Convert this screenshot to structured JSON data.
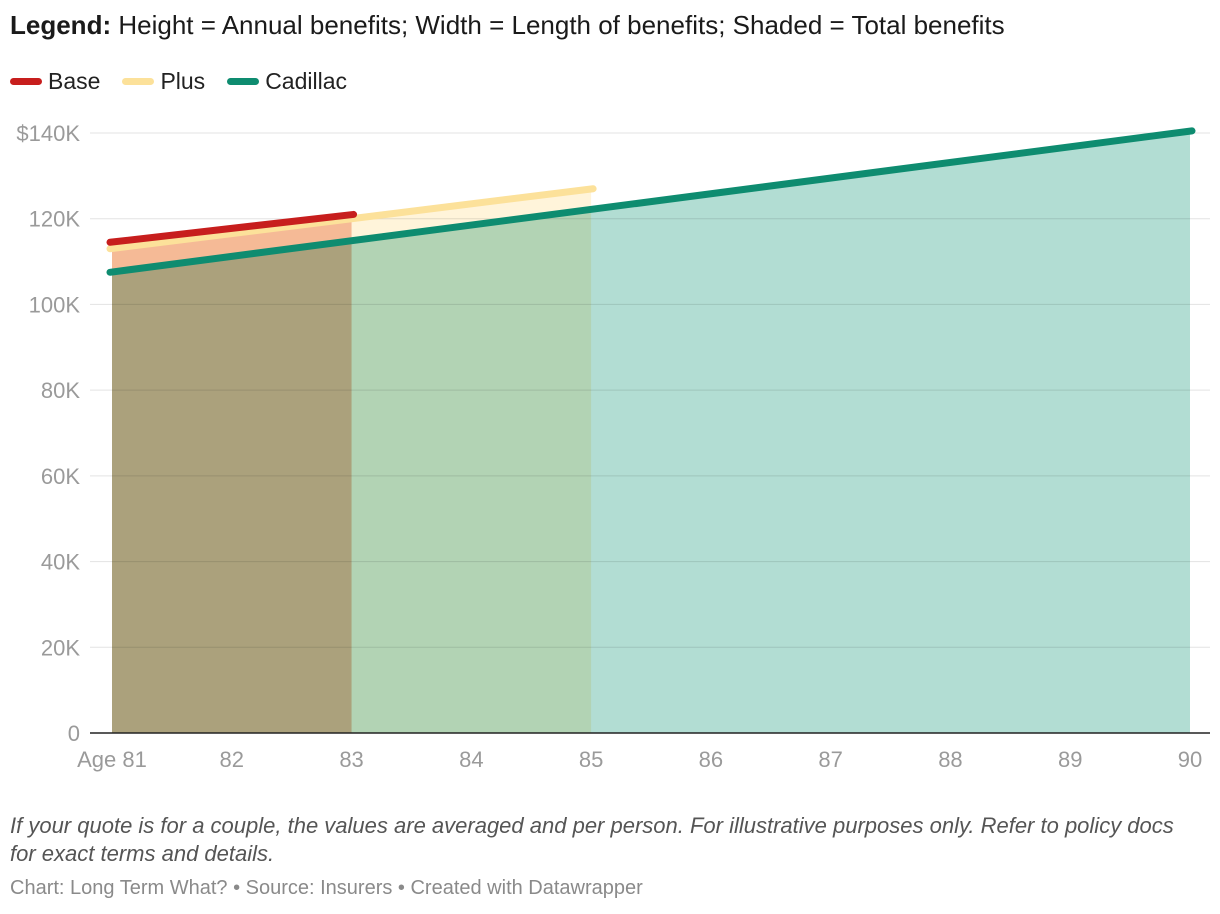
{
  "legend_note": {
    "label": "Legend:",
    "text": "Height = Annual benefits; Width = Length of benefits; Shaded = Total benefits"
  },
  "chart_data": {
    "type": "area",
    "x_ticks": [
      "Age 81",
      "82",
      "83",
      "84",
      "85",
      "86",
      "87",
      "88",
      "89",
      "90"
    ],
    "x_values": [
      81,
      82,
      83,
      84,
      85,
      86,
      87,
      88,
      89,
      90
    ],
    "xlim": [
      81,
      90
    ],
    "y_ticks": [
      "$140K",
      "120K",
      "100K",
      "80K",
      "60K",
      "40K",
      "20K",
      "0"
    ],
    "y_tick_values": [
      140000,
      120000,
      100000,
      80000,
      60000,
      40000,
      20000,
      0
    ],
    "ylim": [
      0,
      140000
    ],
    "grid": true,
    "legend_position": "top-left",
    "series": [
      {
        "name": "Cadillac",
        "color": "#0e8c70",
        "fill": "#b2ddd3",
        "points": [
          {
            "x": 81,
            "y": 107500
          },
          {
            "x": 90,
            "y": 140500
          }
        ]
      },
      {
        "name": "Plus",
        "color": "#fce19a",
        "fill": "#fff4da",
        "points": [
          {
            "x": 81,
            "y": 113000
          },
          {
            "x": 85,
            "y": 127000
          }
        ]
      },
      {
        "name": "Base",
        "color": "#c71e1d",
        "fill": "#f5c3b0",
        "points": [
          {
            "x": 81,
            "y": 114500
          },
          {
            "x": 83,
            "y": 121000
          }
        ]
      }
    ]
  },
  "footnote": "If your quote is for a couple, the values are averaged and per person. For illustrative purposes only. Refer to policy docs for exact terms and details.",
  "credit": "Chart: Long Term What? • Source: Insurers • Created with Datawrapper"
}
